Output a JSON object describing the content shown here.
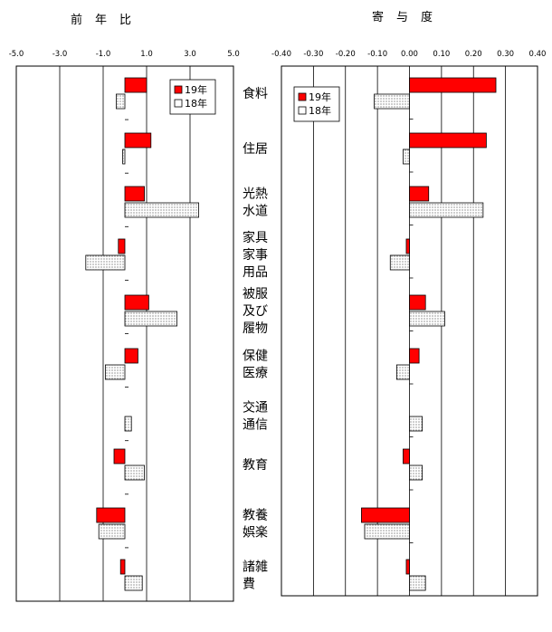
{
  "chart_data": [
    {
      "type": "bar",
      "orientation": "horizontal",
      "title": "前年比",
      "xlim": [
        -5.0,
        5.0
      ],
      "xticks": [
        "-5.0",
        "-3.0",
        "-1.0",
        "1.0",
        "3.0",
        "5.0"
      ],
      "categories": [
        "食料",
        "住居",
        "光熱\n水道",
        "家具\n家事\n用品",
        "被服\n及び\n履物",
        "保健\n医療",
        "交通\n通信",
        "教育",
        "教養\n娯楽",
        "諸雑\n費"
      ],
      "series": [
        {
          "name": "19年",
          "color": "#ff0000",
          "values": [
            1.0,
            1.2,
            0.9,
            -0.3,
            1.1,
            0.6,
            0.0,
            -0.5,
            -1.3,
            -0.2
          ]
        },
        {
          "name": "18年",
          "color": "#ffffff",
          "pattern": "dots",
          "values": [
            -0.4,
            -0.1,
            3.4,
            -1.8,
            2.4,
            -0.9,
            0.3,
            0.9,
            -1.2,
            0.8
          ]
        }
      ],
      "legend": "top-right"
    },
    {
      "type": "bar",
      "orientation": "horizontal",
      "title": "寄与度",
      "xlim": [
        -0.4,
        0.4
      ],
      "xticks": [
        "-0.40",
        "-0.30",
        "-0.20",
        "-0.10",
        "0.00",
        "0.10",
        "0.20",
        "0.30",
        "0.40"
      ],
      "categories": [
        "食料",
        "住居",
        "光熱\n水道",
        "家具\n家事\n用品",
        "被服\n及び\n履物",
        "保健\n医療",
        "交通\n通信",
        "教育",
        "教養\n娯楽",
        "諸雑\n費"
      ],
      "series": [
        {
          "name": "19年",
          "color": "#ff0000",
          "values": [
            0.27,
            0.24,
            0.06,
            -0.01,
            0.05,
            0.03,
            0.0,
            -0.02,
            -0.15,
            -0.01
          ]
        },
        {
          "name": "18年",
          "color": "#ffffff",
          "pattern": "dots",
          "values": [
            -0.11,
            -0.02,
            0.23,
            -0.06,
            0.11,
            -0.04,
            0.04,
            0.04,
            -0.14,
            0.05
          ]
        }
      ],
      "legend": "top-left"
    }
  ]
}
